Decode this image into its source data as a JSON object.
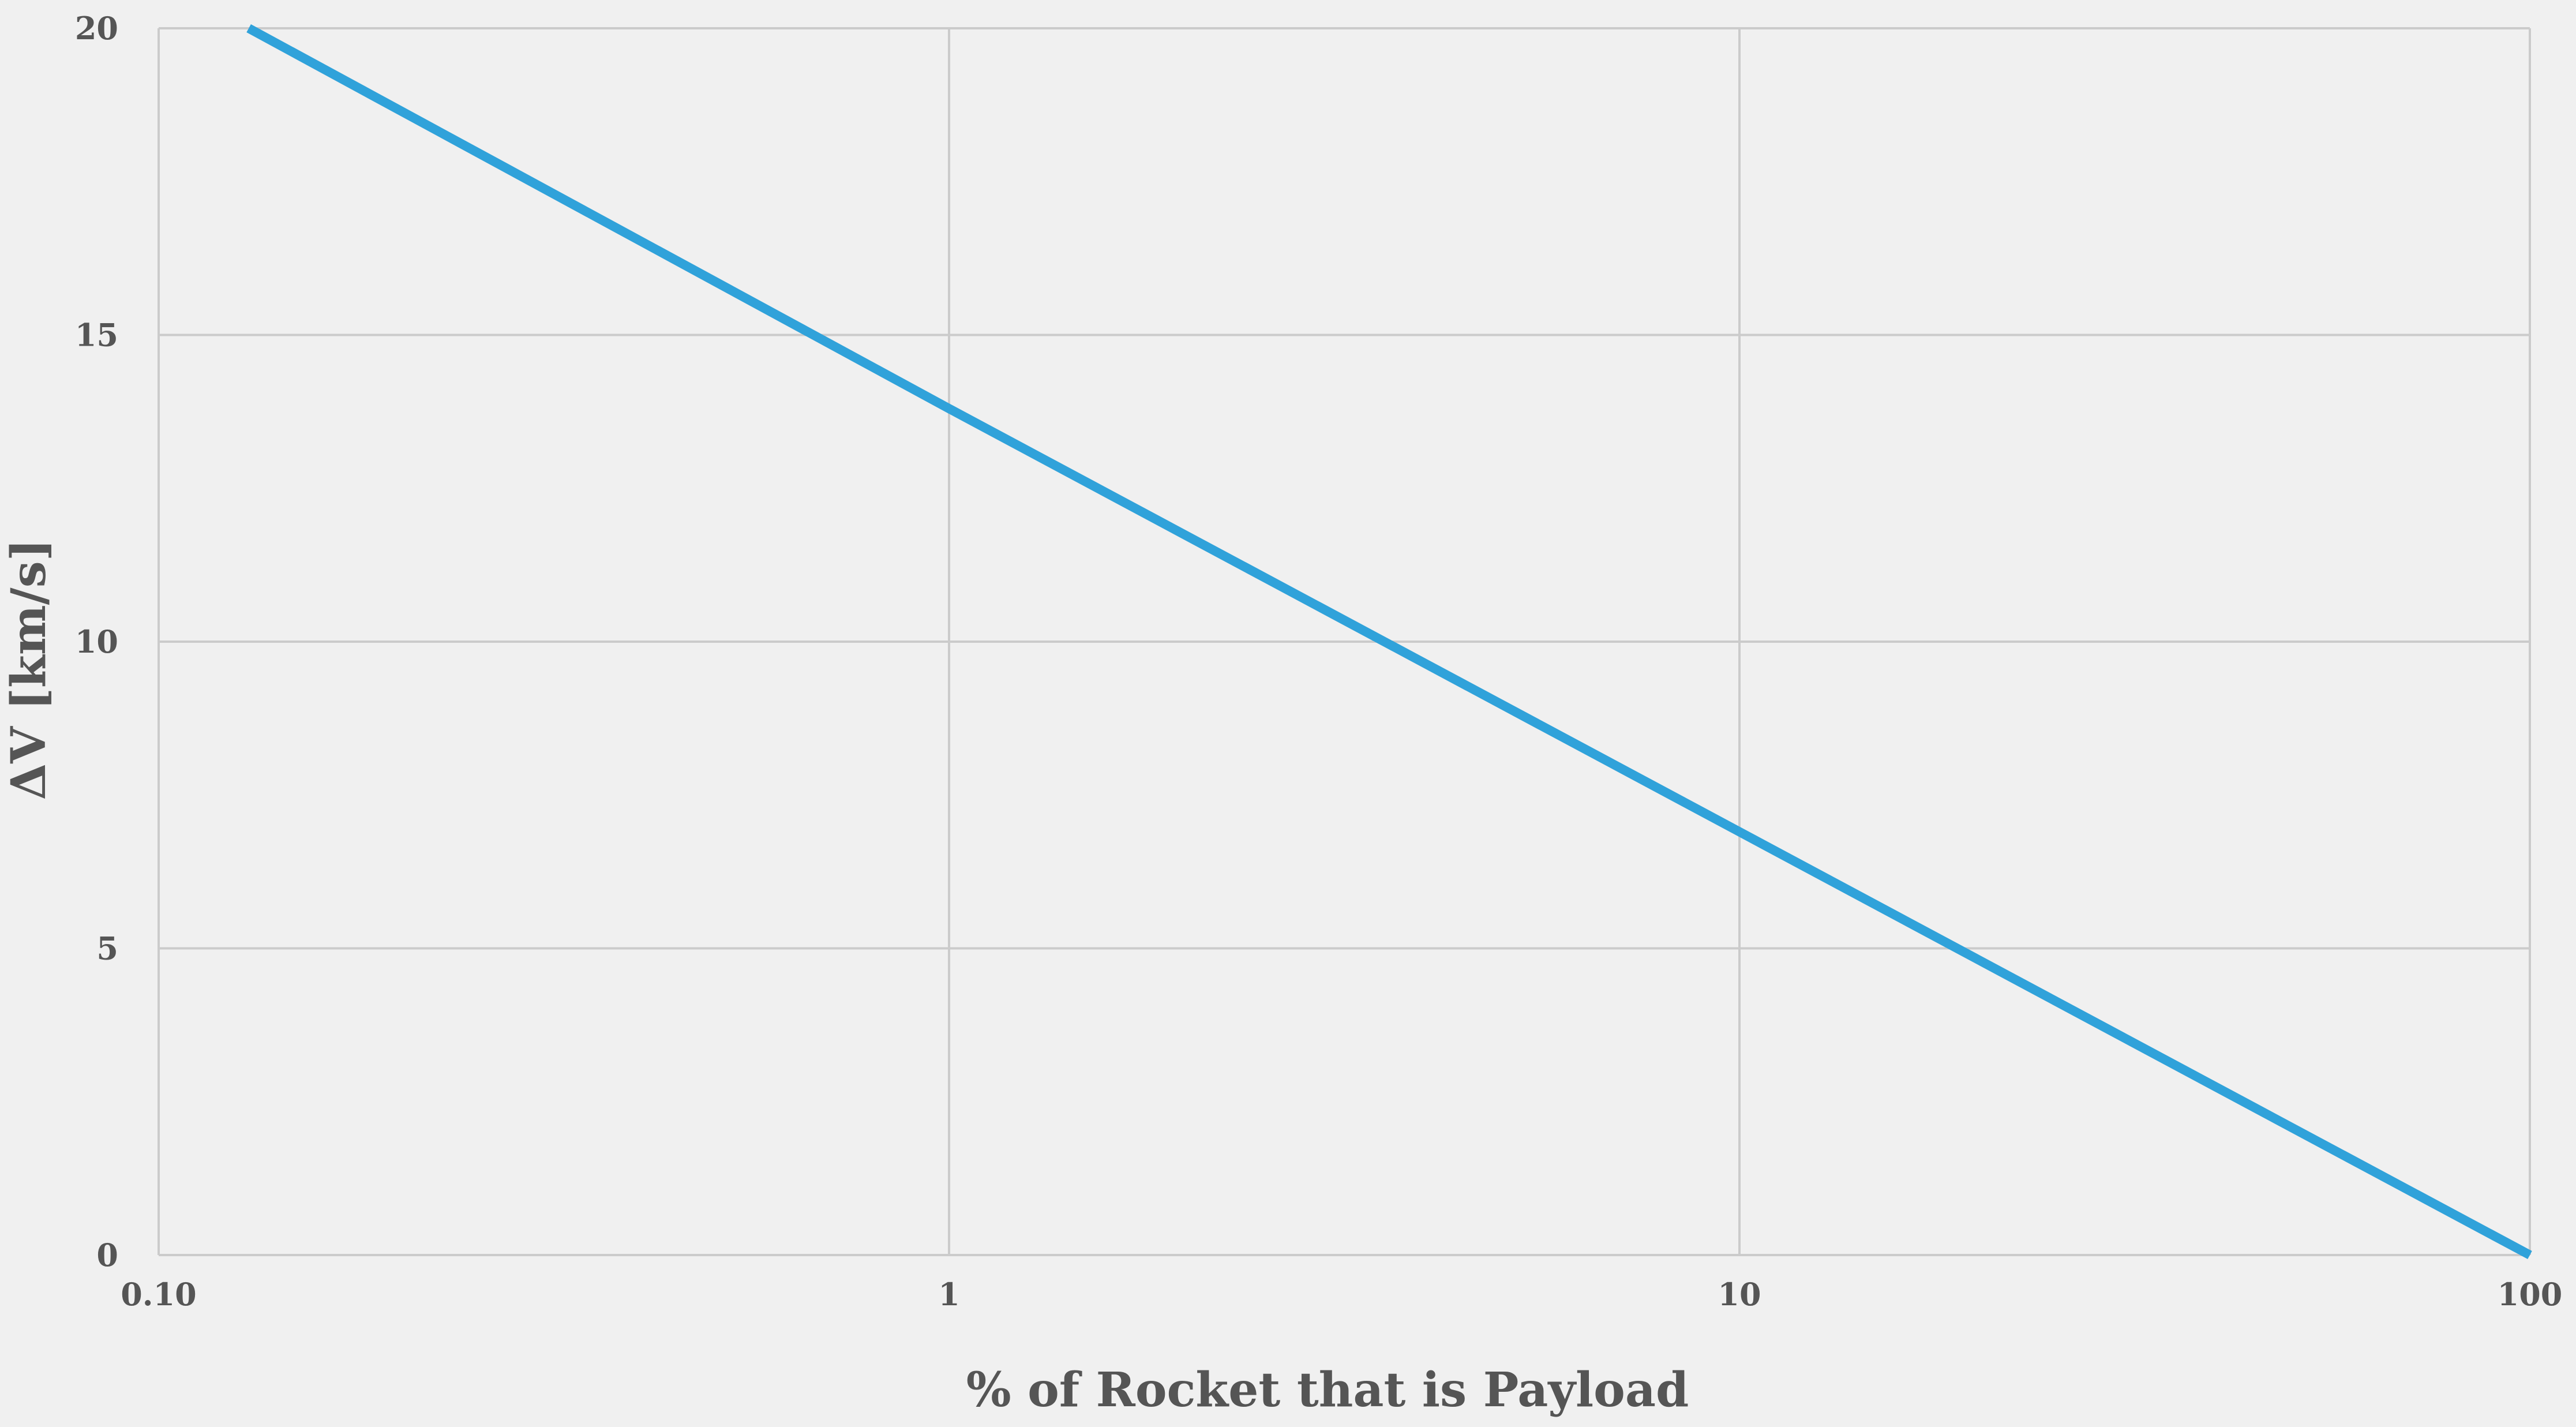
{
  "chart_data": {
    "type": "line",
    "title": "",
    "xlabel": "% of Rocket that is Payload",
    "ylabel": "ΔV [km/s]",
    "xscale": "log",
    "xlim": [
      0.1,
      100
    ],
    "ylim": [
      0,
      20
    ],
    "grid": true,
    "x_ticks": [
      0.1,
      1,
      10,
      100
    ],
    "x_tick_labels": [
      "0.10",
      "1",
      "10",
      "100"
    ],
    "y_ticks": [
      0,
      5,
      10,
      15,
      20
    ],
    "y_tick_labels": [
      "0",
      "5",
      "10",
      "15",
      "20"
    ],
    "series": [
      {
        "color": "#30a2da",
        "x": [
          0.13,
          1,
          10,
          100
        ],
        "y": [
          20.0,
          13.8,
          6.9,
          0.0
        ]
      }
    ]
  },
  "colors": {
    "background": "#f0f0f0",
    "grid": "#cbcbcb",
    "text": "#555555",
    "line": "#30a2da"
  }
}
